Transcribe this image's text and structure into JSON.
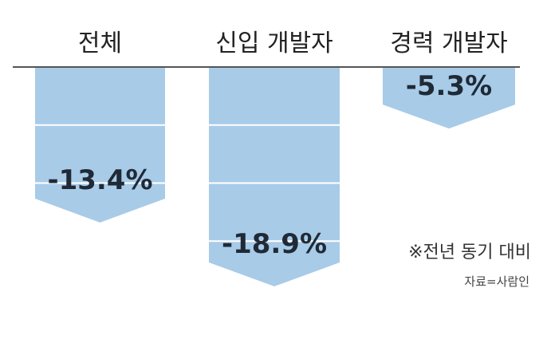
{
  "chart_data": {
    "type": "bar",
    "orientation": "downward",
    "categories": [
      "전체",
      "신입 개발자",
      "경력 개발자"
    ],
    "values": [
      -13.4,
      -18.9,
      -5.3
    ],
    "value_labels": [
      "-13.4%",
      "-18.9%",
      "-5.3%"
    ],
    "unit": "%",
    "ylim": [
      -20,
      0
    ],
    "grid": true,
    "note": "※전년 동기 대비",
    "source": "자료=사람인"
  },
  "colors": {
    "bar": "#a8cbe8",
    "grid": "#ffffff",
    "baseline": "#555555"
  }
}
